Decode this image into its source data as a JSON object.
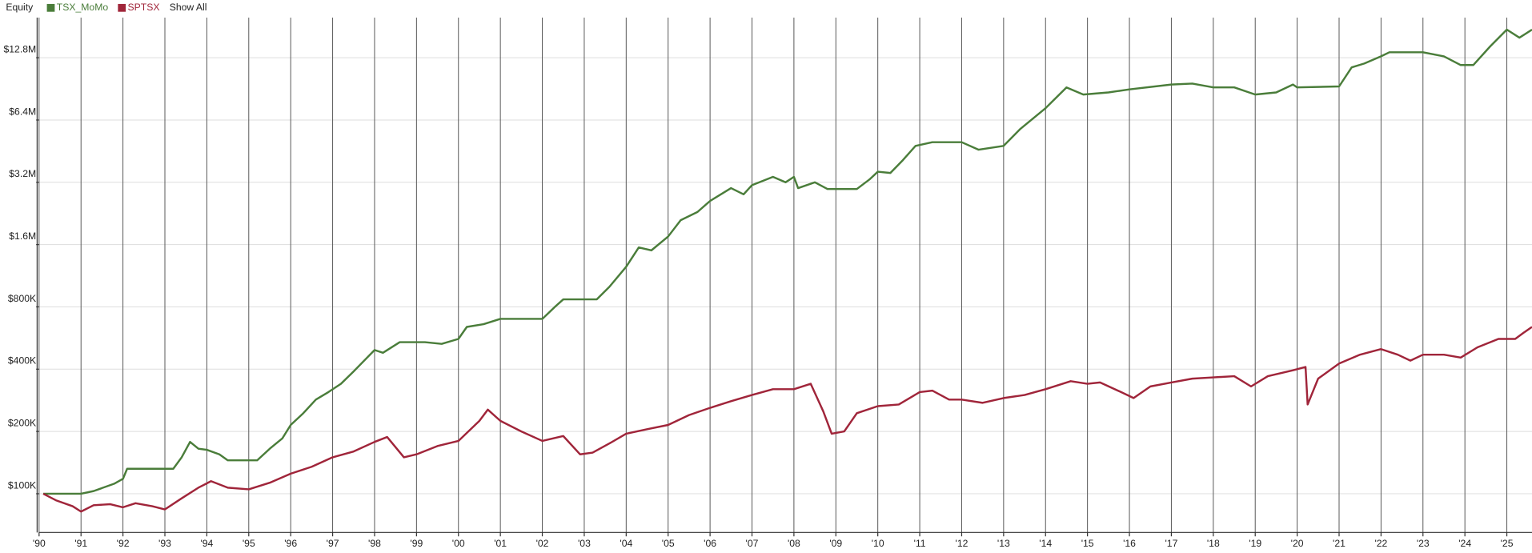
{
  "chart_data": {
    "type": "line",
    "title": "Equity",
    "log_scale": true,
    "grid": true,
    "legend_position": "top-left",
    "show_all_label": "Show All",
    "xlim": [
      1990,
      2025.6
    ],
    "ylim": [
      65000,
      20000000
    ],
    "xticks": [
      {
        "value": 1990,
        "label": "'90"
      },
      {
        "value": 1991,
        "label": "'91"
      },
      {
        "value": 1992,
        "label": "'92"
      },
      {
        "value": 1993,
        "label": "'93"
      },
      {
        "value": 1994,
        "label": "'94"
      },
      {
        "value": 1995,
        "label": "'95"
      },
      {
        "value": 1996,
        "label": "'96"
      },
      {
        "value": 1997,
        "label": "'97"
      },
      {
        "value": 1998,
        "label": "'98"
      },
      {
        "value": 1999,
        "label": "'99"
      },
      {
        "value": 2000,
        "label": "'00"
      },
      {
        "value": 2001,
        "label": "'01"
      },
      {
        "value": 2002,
        "label": "'02"
      },
      {
        "value": 2003,
        "label": "'03"
      },
      {
        "value": 2004,
        "label": "'04"
      },
      {
        "value": 2005,
        "label": "'05"
      },
      {
        "value": 2006,
        "label": "'06"
      },
      {
        "value": 2007,
        "label": "'07"
      },
      {
        "value": 2008,
        "label": "'08"
      },
      {
        "value": 2009,
        "label": "'09"
      },
      {
        "value": 2010,
        "label": "'10"
      },
      {
        "value": 2011,
        "label": "'11"
      },
      {
        "value": 2012,
        "label": "'12"
      },
      {
        "value": 2013,
        "label": "'13"
      },
      {
        "value": 2014,
        "label": "'14"
      },
      {
        "value": 2015,
        "label": "'15"
      },
      {
        "value": 2016,
        "label": "'16"
      },
      {
        "value": 2017,
        "label": "'17"
      },
      {
        "value": 2018,
        "label": "'18"
      },
      {
        "value": 2019,
        "label": "'19"
      },
      {
        "value": 2020,
        "label": "'20"
      },
      {
        "value": 2021,
        "label": "'21"
      },
      {
        "value": 2022,
        "label": "'22"
      },
      {
        "value": 2023,
        "label": "'23"
      },
      {
        "value": 2024,
        "label": "'24"
      },
      {
        "value": 2025,
        "label": "'25"
      }
    ],
    "yticks": [
      {
        "value": 100000,
        "label": "$100K"
      },
      {
        "value": 200000,
        "label": "$200K"
      },
      {
        "value": 400000,
        "label": "$400K"
      },
      {
        "value": 800000,
        "label": "$800K"
      },
      {
        "value": 1600000,
        "label": "$1.6M"
      },
      {
        "value": 3200000,
        "label": "$3.2M"
      },
      {
        "value": 6400000,
        "label": "$6.4M"
      },
      {
        "value": 12800000,
        "label": "$12.8M"
      }
    ],
    "series": [
      {
        "name": "TSX_MoMo",
        "color": "#4a7d3a",
        "x": [
          1990.1,
          1991.0,
          1991.3,
          1991.8,
          1992.0,
          1992.1,
          1993.2,
          1993.4,
          1993.6,
          1993.8,
          1994.0,
          1994.3,
          1994.5,
          1995.2,
          1995.5,
          1995.8,
          1996.0,
          1996.3,
          1996.6,
          1996.9,
          1997.2,
          1997.5,
          1997.8,
          1998.0,
          1998.2,
          1998.6,
          1999.2,
          1999.6,
          2000.0,
          2000.2,
          2000.6,
          2001.0,
          2002.0,
          2002.3,
          2002.5,
          2003.3,
          2003.6,
          2004.0,
          2004.3,
          2004.6,
          2005.0,
          2005.3,
          2005.7,
          2006.0,
          2006.5,
          2006.8,
          2007.0,
          2007.5,
          2007.8,
          2008.0,
          2008.1,
          2008.5,
          2008.8,
          2009.5,
          2009.8,
          2010.0,
          2010.3,
          2010.6,
          2010.9,
          2011.3,
          2012.0,
          2012.4,
          2013.0,
          2013.4,
          2014.0,
          2014.5,
          2014.9,
          2015.5,
          2016.0,
          2017.0,
          2017.5,
          2018.0,
          2018.5,
          2019.0,
          2019.5,
          2019.9,
          2020.0,
          2021.0,
          2021.3,
          2021.6,
          2022.0,
          2022.2,
          2023.0,
          2023.5,
          2023.9,
          2024.2,
          2024.6,
          2025.0,
          2025.3,
          2025.6
        ],
        "values": [
          100000,
          100000,
          103000,
          112000,
          118000,
          132000,
          132000,
          150000,
          178000,
          165000,
          163000,
          155000,
          145000,
          145000,
          165000,
          185000,
          215000,
          245000,
          285000,
          310000,
          340000,
          390000,
          450000,
          495000,
          480000,
          540000,
          540000,
          530000,
          560000,
          640000,
          660000,
          700000,
          700000,
          800000,
          870000,
          870000,
          1000000,
          1250000,
          1550000,
          1500000,
          1750000,
          2100000,
          2300000,
          2600000,
          3000000,
          2800000,
          3100000,
          3400000,
          3200000,
          3400000,
          3000000,
          3200000,
          2970000,
          2970000,
          3300000,
          3600000,
          3550000,
          4100000,
          4800000,
          5000000,
          5000000,
          4600000,
          4800000,
          5800000,
          7300000,
          9200000,
          8500000,
          8700000,
          9000000,
          9500000,
          9600000,
          9200000,
          9200000,
          8500000,
          8700000,
          9500000,
          9200000,
          9300000,
          11500000,
          12000000,
          13000000,
          13600000,
          13600000,
          13000000,
          11800000,
          11800000,
          14500000,
          17500000,
          16000000,
          17500000
        ]
      },
      {
        "name": "SPTSX",
        "color": "#a0253a",
        "x": [
          1990.1,
          1990.4,
          1990.8,
          1991.0,
          1991.3,
          1991.7,
          1992.0,
          1992.3,
          1992.7,
          1993.0,
          1993.4,
          1993.8,
          1994.1,
          1994.5,
          1995.0,
          1995.5,
          1996.0,
          1996.5,
          1997.0,
          1997.5,
          1998.0,
          1998.3,
          1998.7,
          1999.0,
          1999.5,
          2000.0,
          2000.5,
          2000.7,
          2001.0,
          2001.5,
          2002.0,
          2002.5,
          2002.9,
          2003.2,
          2003.6,
          2004.0,
          2004.5,
          2005.0,
          2005.5,
          2006.0,
          2006.5,
          2007.0,
          2007.5,
          2008.0,
          2008.4,
          2008.7,
          2008.9,
          2009.2,
          2009.5,
          2010.0,
          2010.5,
          2011.0,
          2011.3,
          2011.7,
          2012.0,
          2012.5,
          2013.0,
          2013.5,
          2014.0,
          2014.6,
          2015.0,
          2015.3,
          2015.8,
          2016.1,
          2016.5,
          2017.0,
          2017.5,
          2018.0,
          2018.5,
          2018.9,
          2019.3,
          2019.9,
          2020.2,
          2020.25,
          2020.5,
          2021.0,
          2021.5,
          2022.0,
          2022.4,
          2022.7,
          2023.0,
          2023.5,
          2023.9,
          2024.3,
          2024.8,
          2025.2,
          2025.4,
          2025.6
        ],
        "values": [
          100000,
          93000,
          87000,
          82000,
          88000,
          89000,
          86000,
          90000,
          87000,
          84000,
          95000,
          107000,
          115000,
          107000,
          105000,
          113000,
          125000,
          135000,
          150000,
          160000,
          178000,
          188000,
          150000,
          155000,
          170000,
          180000,
          225000,
          255000,
          225000,
          200000,
          180000,
          190000,
          155000,
          158000,
          175000,
          195000,
          205000,
          215000,
          240000,
          260000,
          280000,
          300000,
          320000,
          320000,
          340000,
          250000,
          195000,
          200000,
          245000,
          265000,
          270000,
          310000,
          315000,
          285000,
          285000,
          275000,
          290000,
          300000,
          320000,
          350000,
          340000,
          345000,
          310000,
          290000,
          330000,
          345000,
          360000,
          365000,
          370000,
          330000,
          370000,
          395000,
          410000,
          270000,
          360000,
          426000,
          470000,
          500000,
          470000,
          440000,
          470000,
          470000,
          455000,
          510000,
          560000,
          560000,
          600000,
          640000
        ]
      }
    ]
  }
}
